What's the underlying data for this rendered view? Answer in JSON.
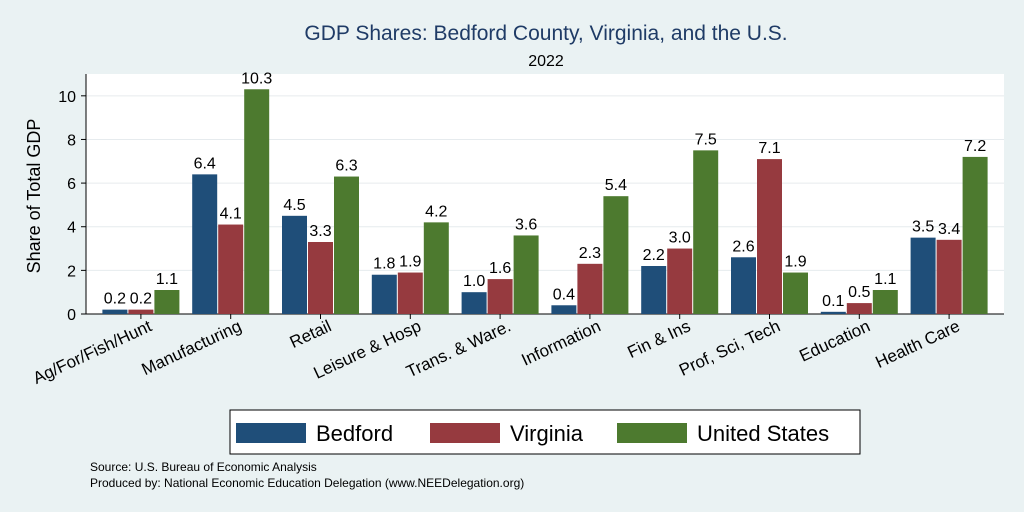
{
  "chart_data": {
    "type": "bar",
    "title": "GDP Shares: Bedford County, Virginia, and the U.S.",
    "subtitle": "2022",
    "ylabel": "Share of Total GDP",
    "xlabel": "",
    "ylim": [
      0,
      11
    ],
    "yticks": [
      0,
      2,
      4,
      6,
      8,
      10
    ],
    "grid": true,
    "legend_position": "bottom",
    "categories": [
      "Ag/For/Fish/Hunt",
      "Manufacturing",
      "Retail",
      "Leisure & Hosp",
      "Trans. & Ware.",
      "Information",
      "Fin & Ins",
      "Prof, Sci, Tech",
      "Education",
      "Health Care"
    ],
    "series": [
      {
        "name": "Bedford",
        "color": "#1f4e79",
        "values": [
          0.2,
          6.4,
          4.5,
          1.8,
          1.0,
          0.4,
          2.2,
          2.6,
          0.1,
          3.5
        ],
        "labels": [
          "0.2",
          "6.4",
          "4.5",
          "1.8",
          "1.0",
          "0.4",
          "2.2",
          "2.6",
          "0.1",
          "3.5"
        ]
      },
      {
        "name": "Virginia",
        "color": "#963a3f",
        "values": [
          0.2,
          4.1,
          3.3,
          1.9,
          1.6,
          2.3,
          3.0,
          7.1,
          0.5,
          3.4
        ],
        "labels": [
          "0.2",
          "4.1",
          "3.3",
          "1.9",
          "1.6",
          "2.3",
          "3.0",
          "7.1",
          "0.5",
          "3.4"
        ]
      },
      {
        "name": "United States",
        "color": "#4d7a2f",
        "values": [
          1.1,
          10.3,
          6.3,
          4.2,
          3.6,
          5.4,
          7.5,
          1.9,
          1.1,
          7.2
        ],
        "labels": [
          "1.1",
          "10.3",
          "6.3",
          "4.2",
          "3.6",
          "5.4",
          "7.5",
          "1.9",
          "1.1",
          "7.2"
        ]
      }
    ]
  },
  "notes": {
    "source": "Source: U.S. Bureau of Economic Analysis",
    "produced_by": "Produced by: National Economic Education Delegation (www.NEEDelegation.org)"
  }
}
